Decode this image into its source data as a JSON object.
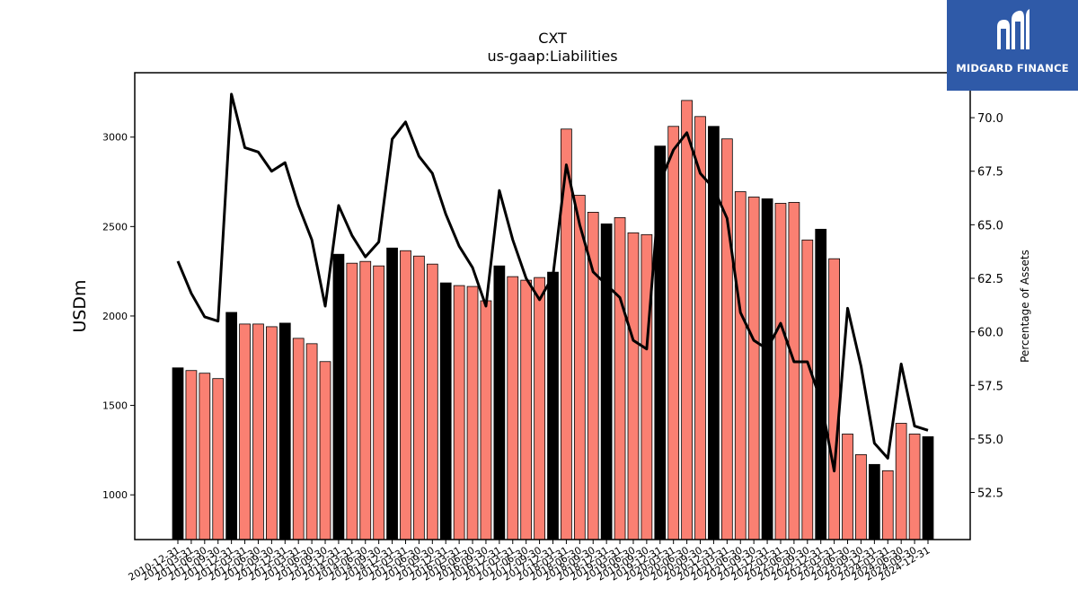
{
  "logo": {
    "text": "MIDGARD FINANCE",
    "icon": "midgard-m-logo-icon",
    "background": "#2f5aa8"
  },
  "chart_data": {
    "type": "bar",
    "title": "CXT",
    "subtitle": "us-gaap:Liabilities",
    "ylabel": "USDm",
    "y2label": "Percentage of Assets",
    "ylim": [
      750,
      3360
    ],
    "y2lim": [
      50.3,
      72.1
    ],
    "yticks": [
      1000,
      1500,
      2000,
      2500,
      3000
    ],
    "y2ticks": [
      "52.5",
      "55.0",
      "57.5",
      "60.0",
      "62.5",
      "65.0",
      "67.5",
      "70.0"
    ],
    "colors": {
      "annual_bar": "#000000",
      "quarter_bar": "#fa8072",
      "line": "#000000"
    },
    "categories": [
      "2010-12-31",
      "2011-03-31",
      "2011-06-30",
      "2011-09-30",
      "2011-12-31",
      "2012-03-31",
      "2012-06-30",
      "2012-09-30",
      "2012-12-31",
      "2013-03-31",
      "2013-06-30",
      "2013-09-30",
      "2013-12-31",
      "2014-03-31",
      "2014-06-30",
      "2014-09-30",
      "2014-12-31",
      "2015-03-31",
      "2015-06-30",
      "2015-09-30",
      "2015-12-31",
      "2016-03-31",
      "2016-06-30",
      "2016-09-30",
      "2016-12-31",
      "2017-03-31",
      "2017-06-30",
      "2017-09-30",
      "2017-12-31",
      "2018-03-31",
      "2018-06-30",
      "2018-09-30",
      "2018-12-31",
      "2019-03-31",
      "2019-06-30",
      "2019-09-30",
      "2019-12-31",
      "2020-03-31",
      "2020-06-30",
      "2020-09-30",
      "2020-12-31",
      "2021-03-31",
      "2021-06-30",
      "2021-09-30",
      "2021-12-31",
      "2022-03-31",
      "2022-06-30",
      "2022-09-30",
      "2022-12-31",
      "2023-03-31",
      "2023-06-30",
      "2023-09-30",
      "2023-12-31",
      "2024-03-31",
      "2024-06-30",
      "2024-09-30",
      "2024-12-31"
    ],
    "series": [
      {
        "type": "bar",
        "values": [
          1710,
          1695,
          1680,
          1650,
          2020,
          1955,
          1955,
          1940,
          1960,
          1875,
          1845,
          1745,
          2345,
          2295,
          2305,
          2280,
          2380,
          2365,
          2335,
          2290,
          2185,
          2170,
          2165,
          2085,
          2280,
          2220,
          2200,
          2215,
          2245,
          3045,
          2675,
          2580,
          2515,
          2550,
          2465,
          2455,
          2950,
          3060,
          3205,
          3115,
          3060,
          2990,
          2695,
          2665,
          2655,
          2630,
          2635,
          2425,
          2485,
          2320,
          1340,
          1225,
          1170,
          1135,
          1400,
          1340,
          1325
        ]
      },
      {
        "type": "line",
        "axis": "y2",
        "values": [
          63.3,
          61.8,
          60.7,
          60.5,
          71.1,
          68.6,
          68.4,
          67.5,
          67.9,
          65.9,
          64.3,
          61.2,
          65.9,
          64.5,
          63.5,
          64.2,
          69.0,
          69.8,
          68.2,
          67.4,
          65.5,
          64.0,
          63.0,
          61.2,
          66.6,
          64.3,
          62.5,
          61.5,
          62.6,
          67.8,
          65.0,
          62.8,
          62.2,
          61.6,
          59.6,
          59.2,
          67.0,
          68.5,
          69.3,
          67.4,
          66.7,
          65.3,
          60.9,
          59.6,
          59.2,
          60.4,
          58.6,
          58.6,
          56.8,
          53.5,
          61.1,
          58.4,
          54.8,
          54.1,
          58.5,
          55.6,
          55.4
        ]
      }
    ]
  }
}
